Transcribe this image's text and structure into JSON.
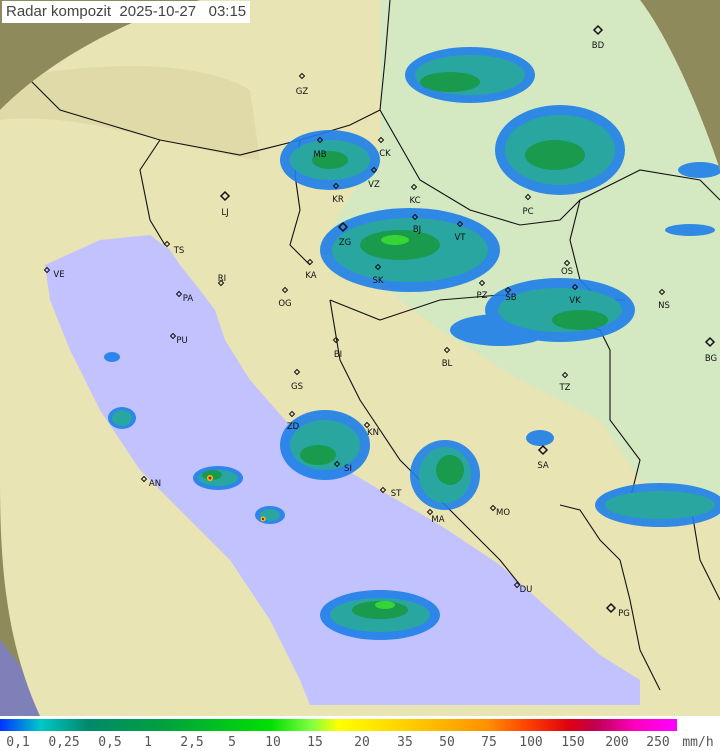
{
  "title": "Radar kompozit  2025-10-27   03:15",
  "legend": {
    "labels": [
      "0,1",
      "0,25",
      "0,5",
      "1",
      "2,5",
      "5",
      "10",
      "15",
      "20",
      "35",
      "50",
      "75",
      "100",
      "150",
      "200",
      "250"
    ],
    "unit": "mm/h",
    "colors": [
      "#0033ff",
      "#00c8c8",
      "#008a6a",
      "#00a040",
      "#00e000",
      "#ffff00",
      "#ff9000",
      "#e00010",
      "#ff00ff"
    ]
  },
  "colors": {
    "sea": "#c2c2ff",
    "land": "#e8e4b4",
    "outside_range": "#8f8a5c"
  },
  "cities": [
    {
      "code": "BD",
      "major": true
    },
    {
      "code": "GZ"
    },
    {
      "code": "MB"
    },
    {
      "code": "CK"
    },
    {
      "code": "VZ"
    },
    {
      "code": "KR"
    },
    {
      "code": "LJ",
      "major": true
    },
    {
      "code": "ZG",
      "major": true
    },
    {
      "code": "KC"
    },
    {
      "code": "BJ"
    },
    {
      "code": "VT"
    },
    {
      "code": "PC"
    },
    {
      "code": "TS"
    },
    {
      "code": "VE"
    },
    {
      "code": "RI"
    },
    {
      "code": "KA"
    },
    {
      "code": "SK"
    },
    {
      "code": "OS"
    },
    {
      "code": "PZ"
    },
    {
      "code": "SB"
    },
    {
      "code": "VK"
    },
    {
      "code": "NS"
    },
    {
      "code": "PA"
    },
    {
      "code": "OG"
    },
    {
      "code": "PU"
    },
    {
      "code": "BI"
    },
    {
      "code": "BL"
    },
    {
      "code": "BG",
      "major": true
    },
    {
      "code": "GS"
    },
    {
      "code": "TZ"
    },
    {
      "code": "ZD"
    },
    {
      "code": "KN"
    },
    {
      "code": "SI"
    },
    {
      "code": "SA",
      "major": true
    },
    {
      "code": "AN"
    },
    {
      "code": "ST"
    },
    {
      "code": "MA"
    },
    {
      "code": "MO"
    },
    {
      "code": "DU"
    },
    {
      "code": "PG",
      "major": true
    }
  ]
}
